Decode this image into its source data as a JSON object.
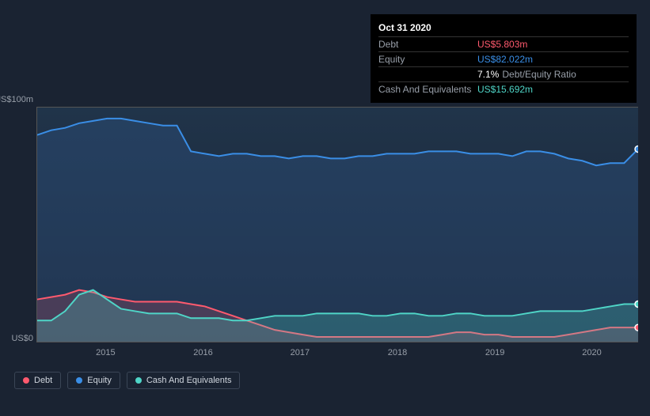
{
  "tooltip": {
    "title": "Oct 31 2020",
    "rows": [
      {
        "label": "Debt",
        "value": "US$5.803m",
        "color": "#ff5a6e"
      },
      {
        "label": "Equity",
        "value": "US$82.022m",
        "color": "#3a8ee6"
      },
      {
        "label": "",
        "value": "7.1%",
        "secondary": "Debt/Equity Ratio",
        "color": "#ffffff"
      },
      {
        "label": "Cash And Equivalents",
        "value": "US$15.692m",
        "color": "#4fd5c7"
      }
    ]
  },
  "chart": {
    "type": "area",
    "background_gradient": [
      "#20344a",
      "#1a2332"
    ],
    "grid_color": "#555555",
    "y_axis": {
      "max_label": "US$100m",
      "min_label": "US$0",
      "max": 100,
      "min": 0
    },
    "x_axis": {
      "ticks": [
        "2015",
        "2016",
        "2017",
        "2018",
        "2019",
        "2020"
      ],
      "tick_positions": [
        0.115,
        0.277,
        0.438,
        0.6,
        0.762,
        0.923
      ]
    },
    "series": [
      {
        "name": "Equity",
        "color": "#3a8ee6",
        "fill": "rgba(50,90,140,0.35)",
        "values": [
          88,
          90,
          91,
          93,
          94,
          95,
          95,
          94,
          93,
          92,
          92,
          81,
          80,
          79,
          80,
          80,
          79,
          79,
          78,
          79,
          79,
          78,
          78,
          79,
          79,
          80,
          80,
          80,
          81,
          81,
          81,
          80,
          80,
          80,
          79,
          81,
          81,
          80,
          78,
          77,
          75,
          76,
          76,
          82
        ]
      },
      {
        "name": "Debt",
        "color": "#ff5a6e",
        "fill": "rgba(255,90,110,0.18)",
        "values": [
          18,
          19,
          20,
          22,
          21,
          19,
          18,
          17,
          17,
          17,
          17,
          16,
          15,
          13,
          11,
          9,
          7,
          5,
          4,
          3,
          2,
          2,
          2,
          2,
          2,
          2,
          2,
          2,
          2,
          3,
          4,
          4,
          3,
          3,
          2,
          2,
          2,
          2,
          3,
          4,
          5,
          6,
          6,
          6
        ]
      },
      {
        "name": "Cash And Equivalents",
        "color": "#4fd5c7",
        "fill": "rgba(79,213,199,0.25)",
        "values": [
          9,
          9,
          13,
          20,
          22,
          18,
          14,
          13,
          12,
          12,
          12,
          10,
          10,
          10,
          9,
          9,
          10,
          11,
          11,
          11,
          12,
          12,
          12,
          12,
          11,
          11,
          12,
          12,
          11,
          11,
          12,
          12,
          11,
          11,
          11,
          12,
          13,
          13,
          13,
          13,
          14,
          15,
          16,
          16
        ]
      }
    ],
    "marker": {
      "x": 1.0,
      "radius": 4
    }
  },
  "legend": {
    "items": [
      {
        "label": "Debt",
        "color": "#ff5a6e"
      },
      {
        "label": "Equity",
        "color": "#3a8ee6"
      },
      {
        "label": "Cash And Equivalents",
        "color": "#4fd5c7"
      }
    ]
  }
}
